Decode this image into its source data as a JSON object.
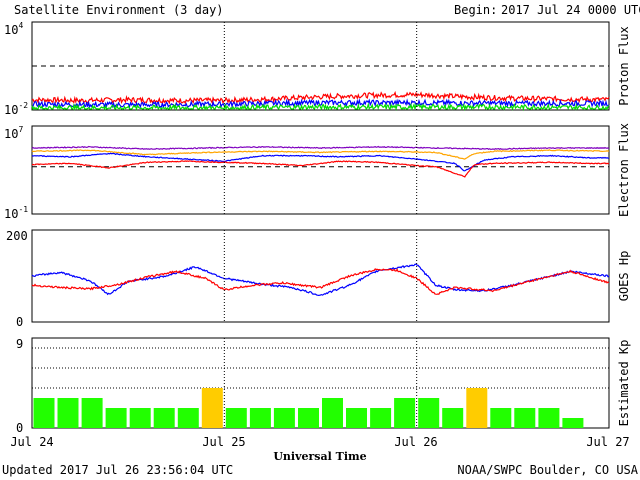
{
  "header": {
    "title": "Satellite Environment (3 day)",
    "begin_label": "Begin:",
    "begin_value": "2017 Jul 24 0000 UTC"
  },
  "footer": {
    "updated": "Updated 2017 Jul 26 23:56:04 UTC",
    "credit": "NOAA/SWPC Boulder, CO USA"
  },
  "chart_data": [
    {
      "type": "line",
      "ylabel": "Proton Flux",
      "yscale": "log",
      "ylim_exp": [
        -2,
        4
      ],
      "y_ticks": [
        {
          "base": "10",
          "exp": "4"
        },
        {
          "base": "10",
          "exp": "-2"
        }
      ],
      "threshold_exp": 1,
      "x_day_range": [
        0,
        3
      ],
      "series": [
        {
          "color": "#ff0000",
          "x": [
            0,
            0.25,
            0.5,
            0.75,
            1.0,
            1.25,
            1.5,
            1.75,
            2.0,
            2.25,
            2.5,
            2.75,
            3.0
          ],
          "y_exp": [
            -1.3,
            -1.35,
            -1.3,
            -1.35,
            -1.35,
            -1.25,
            -1.1,
            -1.0,
            -0.95,
            -1.1,
            -1.2,
            -1.25,
            -1.3
          ]
        },
        {
          "color": "#0000ff",
          "x": [
            0,
            0.5,
            1.0,
            1.5,
            2.0,
            2.5,
            3.0
          ],
          "y_exp": [
            -1.6,
            -1.65,
            -1.6,
            -1.5,
            -1.5,
            -1.55,
            -1.55
          ]
        },
        {
          "color": "#00dd00",
          "x": [
            0,
            0.5,
            1.0,
            1.5,
            2.0,
            2.5,
            3.0
          ],
          "y_exp": [
            -1.85,
            -1.85,
            -1.85,
            -1.8,
            -1.8,
            -1.8,
            -1.85
          ]
        }
      ]
    },
    {
      "type": "line",
      "ylabel": "Electron Flux",
      "yscale": "log",
      "ylim_exp": [
        -1,
        7
      ],
      "y_ticks": [
        {
          "base": "10",
          "exp": "7"
        },
        {
          "base": "10",
          "exp": "-1"
        }
      ],
      "threshold_exp": 3.3,
      "x_day_range": [
        0,
        3
      ],
      "series": [
        {
          "color": "#7f00bf",
          "x": [
            0,
            0.3,
            0.6,
            0.9,
            1.2,
            1.5,
            1.8,
            2.1,
            2.4,
            2.7,
            3.0
          ],
          "y_exp": [
            5.0,
            5.1,
            4.9,
            5.0,
            5.1,
            5.0,
            5.1,
            5.0,
            4.9,
            5.0,
            5.0
          ]
        },
        {
          "color": "#ffa500",
          "x": [
            0,
            0.3,
            0.6,
            0.9,
            1.2,
            1.5,
            1.8,
            2.1,
            2.25,
            2.3,
            2.4,
            2.7,
            3.0
          ],
          "y_exp": [
            4.7,
            4.8,
            4.4,
            4.6,
            4.7,
            4.6,
            4.7,
            4.6,
            4.0,
            4.5,
            4.7,
            4.8,
            4.7
          ]
        },
        {
          "color": "#0000ff",
          "x": [
            0,
            0.2,
            0.4,
            0.6,
            0.8,
            1.0,
            1.2,
            1.4,
            1.6,
            1.8,
            2.0,
            2.2,
            2.25,
            2.35,
            2.5,
            2.7,
            2.9,
            3.0
          ],
          "y_exp": [
            4.3,
            4.2,
            4.5,
            4.2,
            4.0,
            3.8,
            4.3,
            4.3,
            4.2,
            4.3,
            4.0,
            3.6,
            2.9,
            3.9,
            4.2,
            4.3,
            4.1,
            4.1
          ]
        },
        {
          "color": "#ff0000",
          "x": [
            0,
            0.2,
            0.4,
            0.6,
            0.8,
            1.0,
            1.2,
            1.4,
            1.6,
            1.8,
            2.0,
            2.1,
            2.25,
            2.3,
            2.4,
            2.7,
            2.9,
            3.0
          ],
          "y_exp": [
            3.5,
            3.6,
            3.2,
            3.7,
            3.8,
            3.7,
            3.6,
            3.4,
            3.8,
            3.7,
            3.4,
            3.3,
            2.4,
            3.5,
            3.6,
            3.7,
            3.6,
            3.6
          ]
        }
      ]
    },
    {
      "type": "line",
      "ylabel": "GOES Hp",
      "ylim": [
        0,
        200
      ],
      "y_ticks": [
        "200",
        "0"
      ],
      "x_day_range": [
        0,
        3
      ],
      "series": [
        {
          "color": "#0000ff",
          "x": [
            0,
            0.15,
            0.3,
            0.4,
            0.5,
            0.7,
            0.85,
            1.0,
            1.2,
            1.35,
            1.5,
            1.65,
            1.8,
            1.9,
            2.0,
            2.1,
            2.2,
            2.35,
            2.5,
            2.65,
            2.8,
            3.0
          ],
          "y": [
            100,
            108,
            90,
            60,
            88,
            100,
            120,
            95,
            82,
            75,
            58,
            80,
            112,
            118,
            125,
            80,
            70,
            68,
            80,
            95,
            110,
            100
          ]
        },
        {
          "color": "#ff0000",
          "x": [
            0,
            0.15,
            0.3,
            0.45,
            0.6,
            0.75,
            0.9,
            1.0,
            1.15,
            1.3,
            1.5,
            1.65,
            1.8,
            1.9,
            2.0,
            2.1,
            2.2,
            2.4,
            2.6,
            2.8,
            3.0
          ],
          "y": [
            80,
            75,
            72,
            82,
            98,
            110,
            95,
            70,
            80,
            85,
            75,
            100,
            115,
            112,
            95,
            60,
            75,
            68,
            90,
            110,
            85
          ]
        }
      ]
    },
    {
      "type": "bar",
      "ylabel": "Estimated Kp",
      "ylim": [
        0,
        9
      ],
      "y_ticks": [
        "9",
        "0"
      ],
      "dotted_levels": [
        4,
        6,
        8
      ],
      "bar_colors": {
        "green": "#22ff00",
        "yellow": "#ffcc00"
      },
      "values": [
        3,
        3,
        3,
        2,
        2,
        2,
        2,
        4,
        2,
        2,
        2,
        2,
        3,
        2,
        2,
        3,
        3,
        2,
        4,
        2,
        2,
        2,
        1,
        0
      ],
      "colors": [
        "green",
        "green",
        "green",
        "green",
        "green",
        "green",
        "green",
        "yellow",
        "green",
        "green",
        "green",
        "green",
        "green",
        "green",
        "green",
        "green",
        "green",
        "green",
        "yellow",
        "green",
        "green",
        "green",
        "green",
        "green"
      ]
    }
  ],
  "x_axis": {
    "xlabel": "Universal Time",
    "ticks": [
      "Jul 24",
      "Jul 25",
      "Jul 26",
      "Jul 27"
    ]
  }
}
